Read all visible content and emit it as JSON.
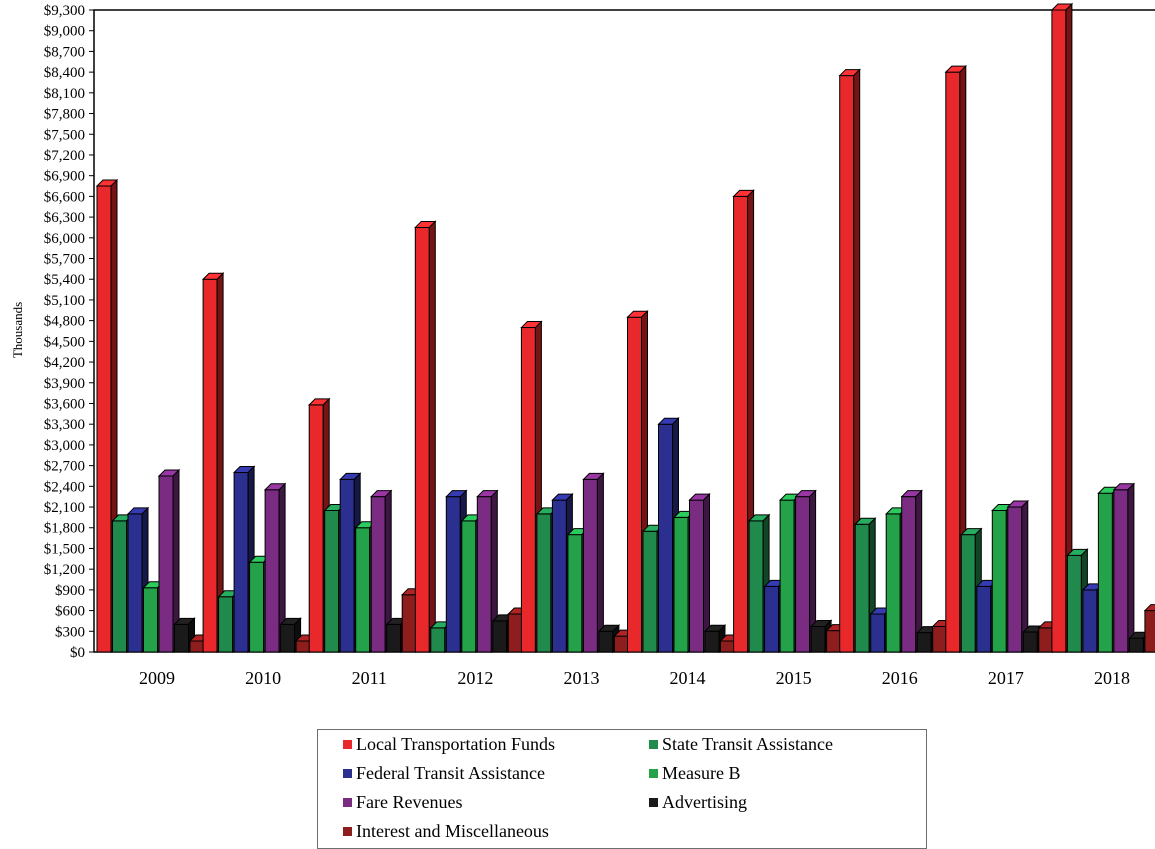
{
  "chart_data": {
    "type": "bar",
    "ylabel": "Thousands",
    "xlabel": "",
    "ylim": [
      0,
      9300
    ],
    "ytick_step": 300,
    "y_tick_labels": [
      "$0",
      "$300",
      "$600",
      "$900",
      "$1,200",
      "$1,500",
      "$1,800",
      "$2,100",
      "$2,400",
      "$2,700",
      "$3,000",
      "$3,300",
      "$3,600",
      "$3,900",
      "$4,200",
      "$4,500",
      "$4,800",
      "$5,100",
      "$5,400",
      "$5,700",
      "$6,000",
      "$6,300",
      "$6,600",
      "$6,900",
      "$7,200",
      "$7,500",
      "$7,800",
      "$8,100",
      "$8,400",
      "$8,700",
      "$9,000",
      "$9,300"
    ],
    "categories": [
      "2009",
      "2010",
      "2011",
      "2012",
      "2013",
      "2014",
      "2015",
      "2016",
      "2017",
      "2018"
    ],
    "legend_position": "bottom-center",
    "grid": false,
    "series": [
      {
        "name": "Local Transportation Funds",
        "color": "#e8282a",
        "values": [
          6750,
          5400,
          3580,
          6150,
          4700,
          4850,
          6600,
          8350,
          8400,
          9300
        ]
      },
      {
        "name": "State Transit Assistance",
        "color": "#1f8a4c",
        "values": [
          1900,
          800,
          2050,
          350,
          2000,
          1750,
          1900,
          1850,
          1700,
          1400
        ]
      },
      {
        "name": "Federal Transit Assistance",
        "color": "#2b2f8f",
        "values": [
          2000,
          2600,
          2500,
          2250,
          2200,
          3300,
          950,
          550,
          950,
          900
        ]
      },
      {
        "name": "Measure B",
        "color": "#23a24a",
        "values": [
          930,
          1300,
          1800,
          1900,
          1700,
          1950,
          2200,
          2000,
          2050,
          2300
        ]
      },
      {
        "name": "Fare Revenues",
        "color": "#7a2b82",
        "values": [
          2550,
          2350,
          2250,
          2250,
          2500,
          2200,
          2250,
          2250,
          2100,
          2350
        ]
      },
      {
        "name": "Advertising",
        "color": "#1a1a1a",
        "values": [
          400,
          400,
          400,
          450,
          300,
          300,
          370,
          280,
          290,
          200
        ]
      },
      {
        "name": "Interest and Miscellaneous",
        "color": "#8e1d1d",
        "values": [
          160,
          160,
          830,
          550,
          230,
          160,
          310,
          370,
          350,
          600
        ]
      }
    ]
  }
}
